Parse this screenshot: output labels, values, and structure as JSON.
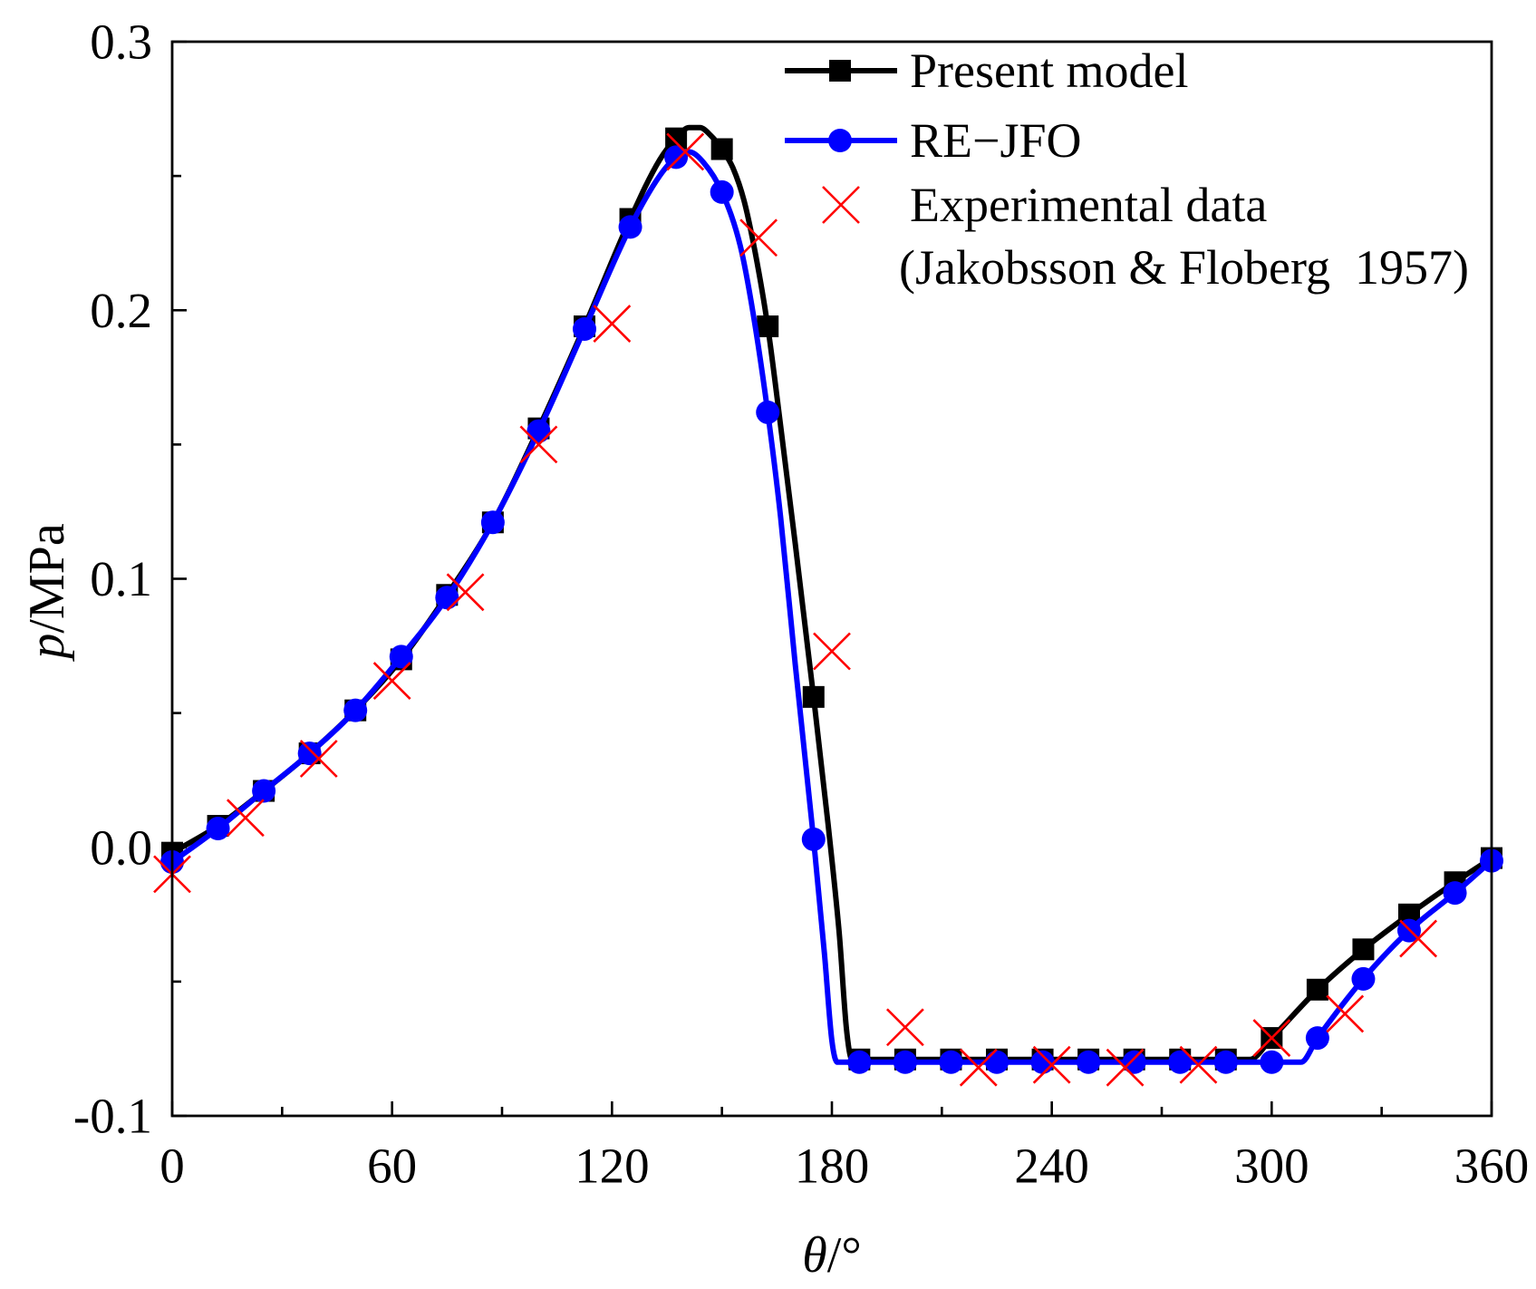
{
  "chart_data": {
    "type": "line",
    "title": "",
    "grid": false,
    "xaxis": {
      "var": "θ",
      "unit": "/°",
      "range": [
        0,
        360
      ],
      "ticks": [
        0,
        60,
        120,
        180,
        240,
        300,
        360
      ],
      "labels": [
        "0",
        "60",
        "120",
        "180",
        "240",
        "300",
        "360"
      ],
      "minor": [
        30,
        90,
        150,
        210,
        270,
        330
      ]
    },
    "yaxis": {
      "var": "p",
      "unit": "/MPa",
      "range": [
        -0.1,
        0.3
      ],
      "ticks": [
        0.3,
        0.2,
        0.1,
        0.0,
        -0.1
      ],
      "labels": [
        "0.3",
        "0.2",
        "0.1",
        "0.0",
        "-0.1"
      ],
      "minor": [
        0.25,
        0.15,
        0.05,
        -0.05
      ]
    },
    "legend": {
      "position": "top-right",
      "note": "(Jakobsson & Floberg  1957)"
    },
    "series": [
      {
        "name": "Present model",
        "color": "#000000",
        "marker": "square",
        "curve": {
          "x": [
            0,
            12.5,
            25,
            37.5,
            50,
            62.5,
            75,
            87.5,
            100,
            112.5,
            125,
            133,
            137.5,
            141,
            144,
            147,
            150,
            153,
            156,
            159,
            162.5,
            166,
            170,
            175,
            179,
            182,
            184,
            185.5,
            294,
            300,
            312.5,
            325,
            337.5,
            350,
            360
          ],
          "y": [
            -0.002,
            0.008,
            0.021,
            0.035,
            0.051,
            0.07,
            0.094,
            0.121,
            0.156,
            0.194,
            0.234,
            0.256,
            0.264,
            0.268,
            0.268,
            0.265,
            0.26,
            0.253,
            0.241,
            0.222,
            0.194,
            0.157,
            0.113,
            0.056,
            0.008,
            -0.032,
            -0.068,
            -0.079,
            -0.079,
            -0.071,
            -0.053,
            -0.038,
            -0.025,
            -0.013,
            -0.004
          ]
        },
        "markers": {
          "x": [
            0,
            12.5,
            25,
            37.5,
            50,
            62.5,
            75,
            87.5,
            100,
            112.5,
            125,
            137.5,
            150,
            162.5,
            175,
            187.5,
            200,
            212.5,
            225,
            237.5,
            250,
            262.5,
            275,
            287.5,
            300,
            312.5,
            325,
            337.5,
            350,
            360
          ],
          "y": [
            -0.002,
            0.008,
            0.021,
            0.035,
            0.051,
            0.07,
            0.094,
            0.121,
            0.156,
            0.194,
            0.234,
            0.264,
            0.26,
            0.194,
            0.056,
            -0.079,
            -0.079,
            -0.079,
            -0.079,
            -0.079,
            -0.079,
            -0.079,
            -0.079,
            -0.079,
            -0.071,
            -0.053,
            -0.038,
            -0.025,
            -0.013,
            -0.004
          ]
        }
      },
      {
        "name": "RE−JFO",
        "color": "#0000ff",
        "marker": "circle",
        "curve": {
          "x": [
            0,
            12.5,
            25,
            37.5,
            50,
            62.5,
            75,
            87.5,
            100,
            112.5,
            125,
            133,
            137.5,
            141,
            145,
            150,
            155,
            158.5,
            162.5,
            166,
            170,
            175,
            178,
            180,
            181.5,
            308,
            312.5,
            325,
            337.5,
            350,
            360
          ],
          "y": [
            -0.0055,
            0.007,
            0.021,
            0.035,
            0.051,
            0.071,
            0.093,
            0.121,
            0.155,
            0.193,
            0.231,
            0.25,
            0.257,
            0.259,
            0.255,
            0.244,
            0.224,
            0.199,
            0.162,
            0.123,
            0.068,
            0.003,
            -0.04,
            -0.072,
            -0.08,
            -0.08,
            -0.071,
            -0.049,
            -0.031,
            -0.017,
            -0.005
          ]
        },
        "markers": {
          "x": [
            0,
            12.5,
            25,
            37.5,
            50,
            62.5,
            75,
            87.5,
            100,
            112.5,
            125,
            137.5,
            150,
            162.5,
            175,
            187.5,
            200,
            212.5,
            225,
            237.5,
            250,
            262.5,
            275,
            287.5,
            300,
            312.5,
            325,
            337.5,
            350,
            360
          ],
          "y": [
            -0.0055,
            0.007,
            0.021,
            0.035,
            0.051,
            0.071,
            0.093,
            0.121,
            0.155,
            0.193,
            0.231,
            0.257,
            0.244,
            0.162,
            0.003,
            -0.08,
            -0.08,
            -0.08,
            -0.08,
            -0.08,
            -0.08,
            -0.08,
            -0.08,
            -0.08,
            -0.08,
            -0.071,
            -0.049,
            -0.031,
            -0.017,
            -0.005
          ]
        }
      },
      {
        "name": "Experimental data",
        "color": "#ff0000",
        "marker": "x",
        "markers": {
          "x": [
            0,
            20,
            40,
            60,
            80,
            100,
            120,
            140,
            160,
            180,
            200,
            220,
            240,
            260,
            280,
            300,
            320,
            340
          ],
          "y": [
            -0.01,
            0.011,
            0.033,
            0.062,
            0.095,
            0.15,
            0.195,
            0.259,
            0.227,
            0.073,
            -0.067,
            -0.082,
            -0.081,
            -0.082,
            -0.081,
            -0.071,
            -0.062,
            -0.034
          ]
        }
      }
    ]
  }
}
